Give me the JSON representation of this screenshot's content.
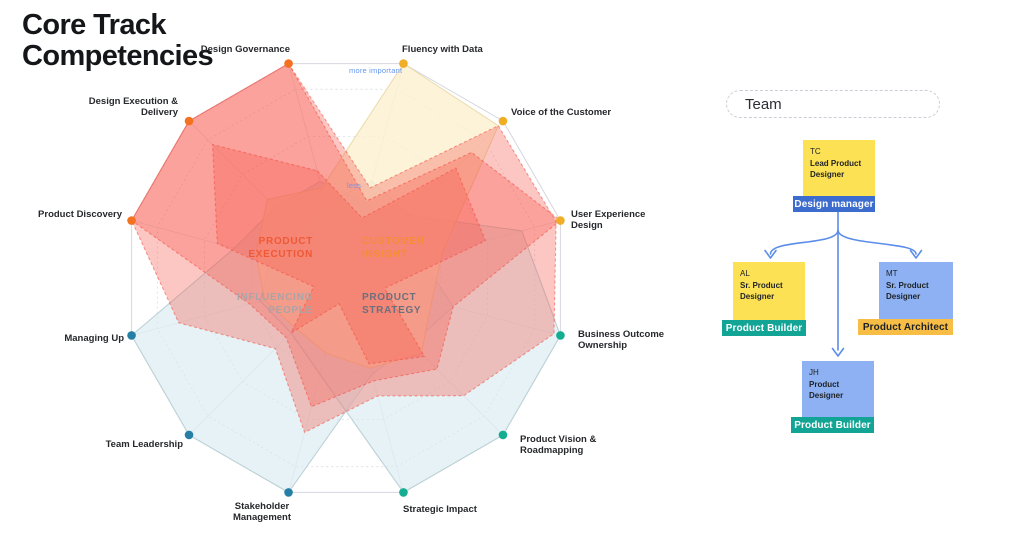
{
  "title": "Core Track Competencies",
  "chart_data": {
    "type": "radar",
    "title": "Core Track Competencies",
    "categories": [
      "Design Governance",
      "Fluency with Data",
      "Voice of the Customer",
      "User Experience Design",
      "Business Outcome Ownership",
      "Product Vision & Roadmapping",
      "Strategic Impact",
      "Stakeholder Management",
      "Team Leadership",
      "Managing Up",
      "Product Discovery",
      "Design Execution & Delivery"
    ],
    "axis_dot_colors": [
      "#f4711f",
      "#f0ad26",
      "#f0ad26",
      "#f0ad26",
      "#14ad92",
      "#14ad92",
      "#14ad92",
      "#2680a6",
      "#2680a6",
      "#2680a6",
      "#f4711f",
      "#f4711f"
    ],
    "value_range": [
      0,
      1
    ],
    "rings": [
      0.22,
      0.44,
      0.66,
      0.88
    ],
    "grid": "on",
    "annotations": {
      "more_important": "more important",
      "less": "less"
    },
    "quadrant_labels": [
      {
        "label": "PRODUCT EXECUTION",
        "color": "#ef5a35"
      },
      {
        "label": "CUSTOMER INSIGHT",
        "color": "#f68d35"
      },
      {
        "label": "INFLUENCING PEOPLE",
        "color": "#aaa4a6"
      },
      {
        "label": "PRODUCT STRATEGY",
        "color": "#6e6f7c"
      }
    ],
    "series": [
      {
        "name": "teal-left",
        "fill": "rgba(213,234,238,0.60)",
        "stroke": "#bdd2d8",
        "dashed": false,
        "values": [
          0.45,
          0.35,
          0.3,
          0.35,
          0.5,
          0.42,
          0.45,
          1.0,
          1.0,
          1.0,
          0.52,
          0.45
        ]
      },
      {
        "name": "teal-right",
        "fill": "rgba(213,234,238,0.60)",
        "stroke": "#bdd2d8",
        "dashed": false,
        "values": [
          0.35,
          0.45,
          0.4,
          0.82,
          1.0,
          1.0,
          1.0,
          0.45,
          0.35,
          0.4,
          0.35,
          0.3
        ]
      },
      {
        "name": "cream",
        "fill": "rgba(251,240,207,0.80)",
        "stroke": "#ecdcae",
        "dashed": false,
        "values": [
          0.42,
          1.0,
          0.97,
          0.45,
          0.4,
          0.48,
          0.42,
          0.35,
          0.32,
          0.38,
          0.42,
          0.5
        ]
      },
      {
        "name": "red-large",
        "fill": "rgba(246,90,78,0.34)",
        "stroke": "rgba(242,75,62,0.55)",
        "dashed": true,
        "values": [
          1.0,
          0.42,
          0.97,
          0.98,
          0.97,
          0.75,
          0.55,
          0.72,
          0.45,
          0.78,
          1.0,
          1.0
        ]
      },
      {
        "name": "red-medium",
        "fill": "rgba(246,90,78,0.34)",
        "stroke": "rgba(242,75,62,0.55)",
        "dashed": true,
        "values": [
          1.0,
          0.36,
          0.8,
          1.0,
          0.5,
          0.58,
          0.48,
          0.6,
          0.38,
          0.45,
          1.0,
          1.0
        ]
      },
      {
        "name": "red-star",
        "fill": "rgba(246,90,78,0.34)",
        "stroke": "rgba(242,75,62,0.55)",
        "dashed": true,
        "values": [
          0.5,
          0.28,
          0.7,
          0.65,
          0.18,
          0.5,
          0.4,
          0.12,
          0.35,
          0.15,
          0.6,
          0.85
        ]
      }
    ]
  },
  "team": {
    "header": "Team",
    "connector_color": "#5b8de9",
    "members": [
      {
        "initials": "TC",
        "role": "Lead Product Designer",
        "box_color": "#fce155",
        "tag": "Design manager",
        "tag_color": "#3c6ccd",
        "tag_text_color": "#ffffff"
      },
      {
        "initials": "AL",
        "role": "Sr. Product Designer",
        "box_color": "#fce155",
        "tag": "Product Builder",
        "tag_color": "#12a595",
        "tag_text_color": "#ffffff"
      },
      {
        "initials": "MT",
        "role": "Sr. Product Designer",
        "box_color": "#8db1f2",
        "tag": "Product Architect",
        "tag_color": "#f7bd45",
        "tag_text_color": "#1e2124"
      },
      {
        "initials": "JH",
        "role": "Product Designer",
        "box_color": "#8db1f2",
        "tag": "Product Builder",
        "tag_color": "#12a595",
        "tag_text_color": "#ffffff"
      }
    ]
  }
}
